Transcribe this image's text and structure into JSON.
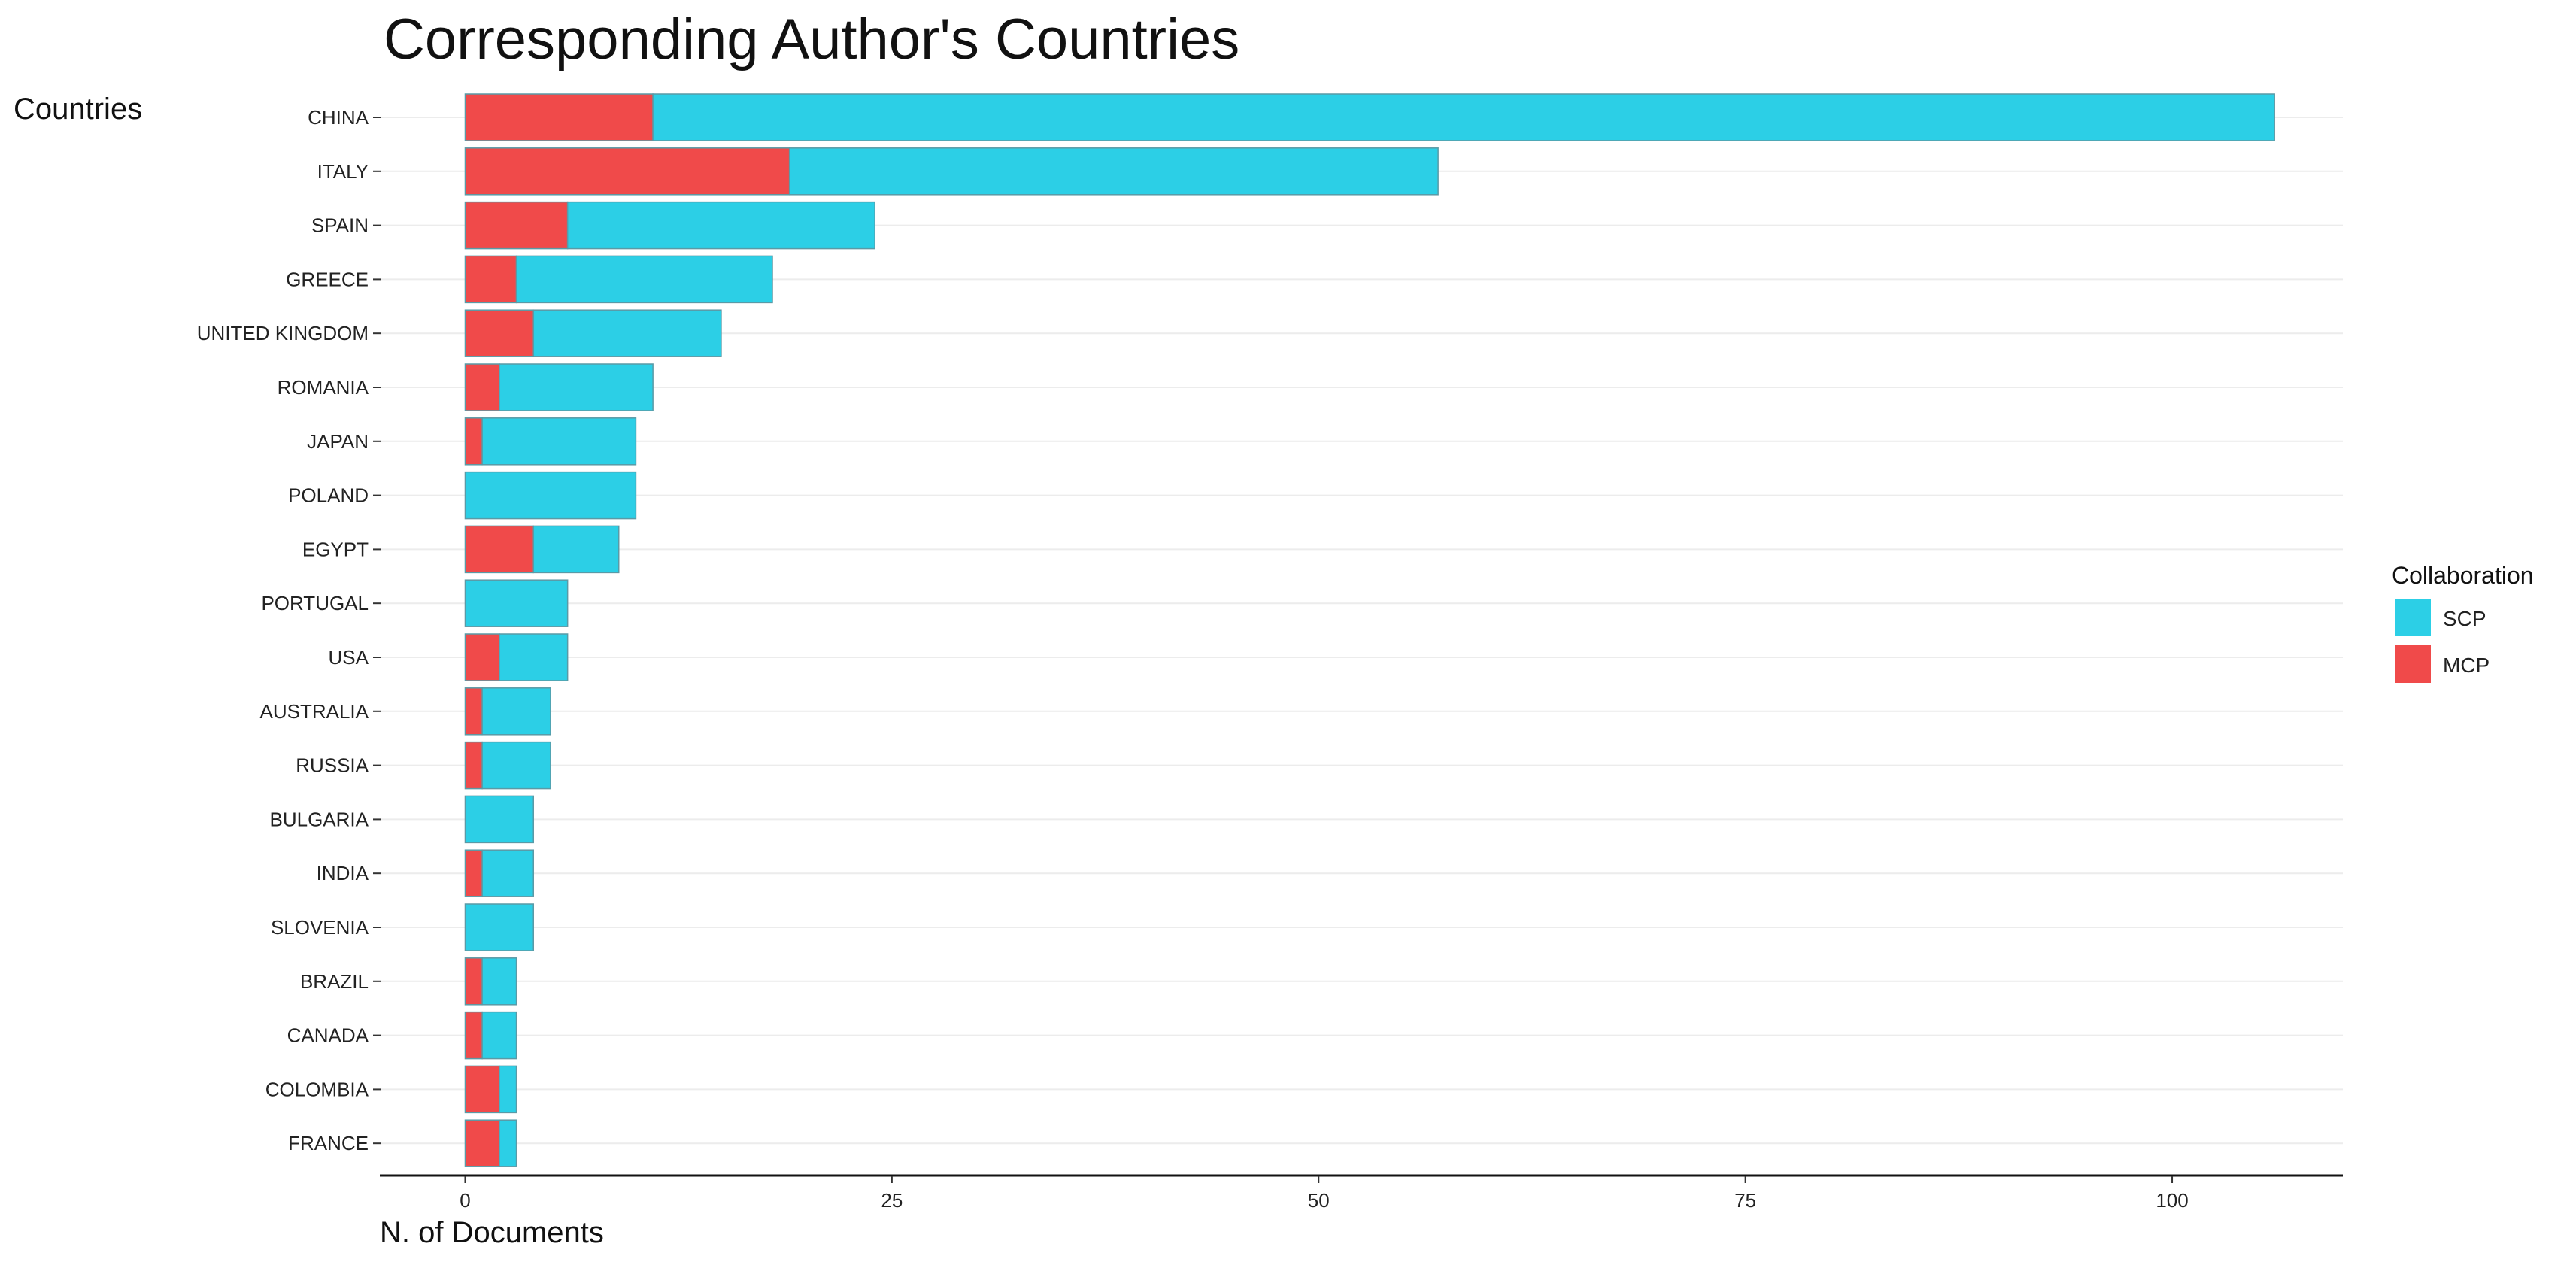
{
  "chart_data": {
    "type": "bar",
    "orientation": "horizontal",
    "stacked": true,
    "title": "Corresponding Author's Countries",
    "xlabel": "N. of Documents",
    "ylabel": "Countries",
    "categories": [
      "CHINA",
      "ITALY",
      "SPAIN",
      "GREECE",
      "UNITED KINGDOM",
      "ROMANIA",
      "JAPAN",
      "POLAND",
      "EGYPT",
      "PORTUGAL",
      "USA",
      "AUSTRALIA",
      "RUSSIA",
      "BULGARIA",
      "INDIA",
      "SLOVENIA",
      "BRAZIL",
      "CANADA",
      "COLOMBIA",
      "FRANCE"
    ],
    "series": [
      {
        "name": "MCP",
        "color": "#f04a4a",
        "values": [
          11,
          19,
          6,
          3,
          4,
          2,
          1,
          0,
          4,
          0,
          2,
          1,
          1,
          0,
          1,
          0,
          1,
          1,
          2,
          2
        ]
      },
      {
        "name": "SCP",
        "color": "#2ccfe6",
        "values": [
          95,
          38,
          18,
          15,
          11,
          9,
          9,
          10,
          5,
          6,
          4,
          4,
          4,
          4,
          3,
          4,
          2,
          2,
          1,
          1
        ]
      }
    ],
    "xlim": [
      -5,
      110
    ],
    "xticks": [
      0,
      25,
      50,
      75,
      100
    ],
    "grid": "horizontal",
    "legend": {
      "title": "Collaboration",
      "placement": "right",
      "entries": [
        "SCP",
        "MCP"
      ]
    }
  }
}
